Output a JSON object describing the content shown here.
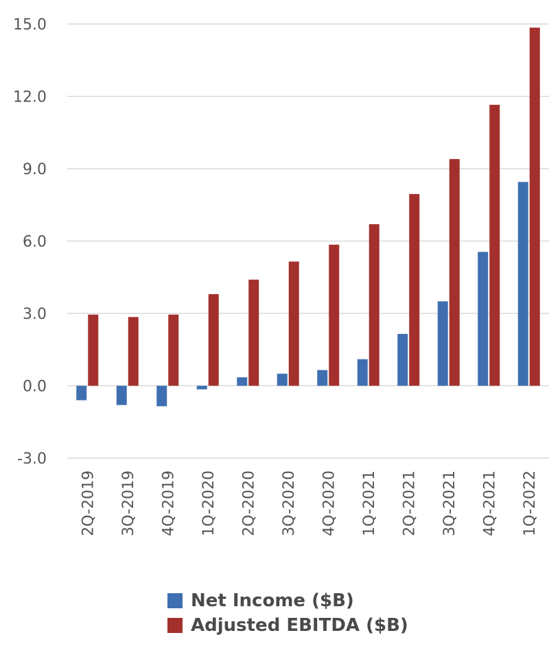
{
  "chart_data": {
    "type": "bar",
    "categories": [
      "2Q-2019",
      "3Q-2019",
      "4Q-2019",
      "1Q-2020",
      "2Q-2020",
      "3Q-2020",
      "4Q-2020",
      "1Q-2021",
      "2Q-2021",
      "3Q-2021",
      "4Q-2021",
      "1Q-2022"
    ],
    "series": [
      {
        "name": "Net Income ($B)",
        "color": "#3f6fb0",
        "values": [
          -0.6,
          -0.8,
          -0.85,
          -0.15,
          0.35,
          0.5,
          0.65,
          1.1,
          2.15,
          3.5,
          5.55,
          8.45
        ]
      },
      {
        "name": "Adjusted EBITDA ($B)",
        "color": "#a3302c",
        "values": [
          2.95,
          2.85,
          2.95,
          3.8,
          4.4,
          5.15,
          5.85,
          6.7,
          7.95,
          9.4,
          11.65,
          14.85
        ]
      }
    ],
    "ylim": [
      -3.0,
      15.0
    ],
    "yticks": [
      "15.0",
      "12.0",
      "9.0",
      "6.0",
      "3.0",
      "0.0",
      "-3.0"
    ],
    "ytick_values": [
      15,
      12,
      9,
      6,
      3,
      0,
      -3
    ],
    "grid": true,
    "legend_position": "bottom"
  }
}
